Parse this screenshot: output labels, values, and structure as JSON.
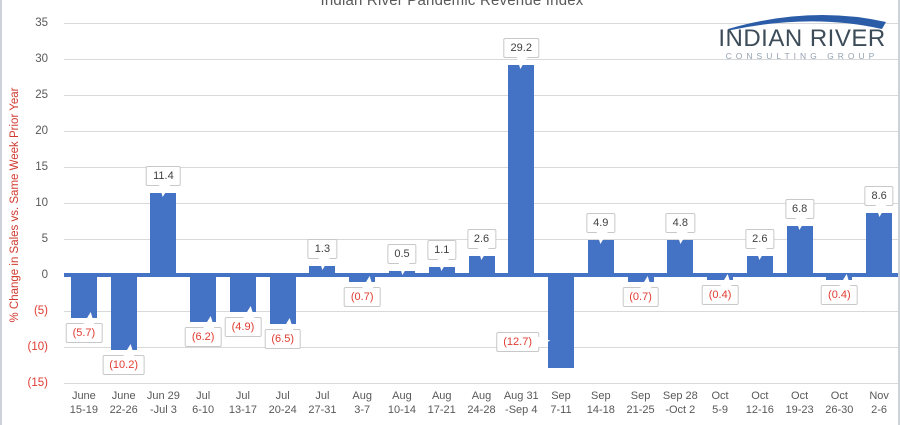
{
  "title": "Indian River Pandemic Revenue Index",
  "logo": {
    "name": "INDIAN RIVER",
    "tagline": "CONSULTING GROUP",
    "arc_color": "#2a5ca8",
    "name_color": "#3d4c59",
    "tagline_color": "#94a2b0"
  },
  "colors": {
    "bar": "#4472C4",
    "zero_axis_line": "#4472C4",
    "gridline": "#d9d9d9",
    "axis_text": "#595959",
    "negative_text": "#e03c32",
    "positive_label_text": "#404040",
    "callout_border": "#c8c8c8",
    "y_axis_title_text": "#d03a30"
  },
  "chart_data": {
    "type": "bar",
    "title": "Indian River Pandemic Revenue Index",
    "xlabel": "",
    "ylabel": "% Change in Sales vs. Same Week Prior Year",
    "ylim": [
      -15,
      35
    ],
    "grid": "horizontal gridlines every 5 units",
    "legend": "none",
    "y_ticks": {
      "values": [
        35,
        30,
        25,
        20,
        15,
        10,
        5,
        0,
        -5,
        -10,
        -15
      ],
      "labels": [
        "35",
        "30",
        "25",
        "20",
        "15",
        "10",
        "5",
        "0",
        "(5)",
        "(10)",
        "(15)"
      ]
    },
    "categories": [
      [
        "June",
        "15-19"
      ],
      [
        "June",
        "22-26"
      ],
      [
        "Jun 29",
        "-Jul 3"
      ],
      [
        "Jul",
        "6-10"
      ],
      [
        "Jul",
        "13-17"
      ],
      [
        "Jul",
        "20-24"
      ],
      [
        "Jul",
        "27-31"
      ],
      [
        "Aug",
        "3-7"
      ],
      [
        "Aug",
        "10-14"
      ],
      [
        "Aug",
        "17-21"
      ],
      [
        "Aug",
        "24-28"
      ],
      [
        "Aug 31",
        "-Sep 4"
      ],
      [
        "Sep",
        "7-11"
      ],
      [
        "Sep",
        "14-18"
      ],
      [
        "Sep",
        "21-25"
      ],
      [
        "Sep 28",
        "-Oct 2"
      ],
      [
        "Oct",
        "5-9"
      ],
      [
        "Oct",
        "12-16"
      ],
      [
        "Oct",
        "19-23"
      ],
      [
        "Oct",
        "26-30"
      ],
      [
        "Nov",
        "2-6"
      ]
    ],
    "values": [
      -5.7,
      -10.2,
      11.4,
      -6.2,
      -4.9,
      -6.5,
      1.3,
      -0.7,
      0.5,
      1.1,
      2.6,
      29.2,
      -12.7,
      4.9,
      -0.7,
      4.8,
      -0.4,
      2.6,
      6.8,
      -0.4,
      8.6
    ],
    "data_labels": [
      "(5.7)",
      "(10.2)",
      "11.4",
      "(6.2)",
      "(4.9)",
      "(6.5)",
      "1.3",
      "(0.7)",
      "0.5",
      "1.1",
      "2.6",
      "29.2",
      "(12.7)",
      "4.9",
      "(0.7)",
      "4.8",
      "(0.4)",
      "2.6",
      "6.8",
      "(0.4)",
      "8.6"
    ],
    "label_side_overrides": {
      "12": "left"
    }
  }
}
